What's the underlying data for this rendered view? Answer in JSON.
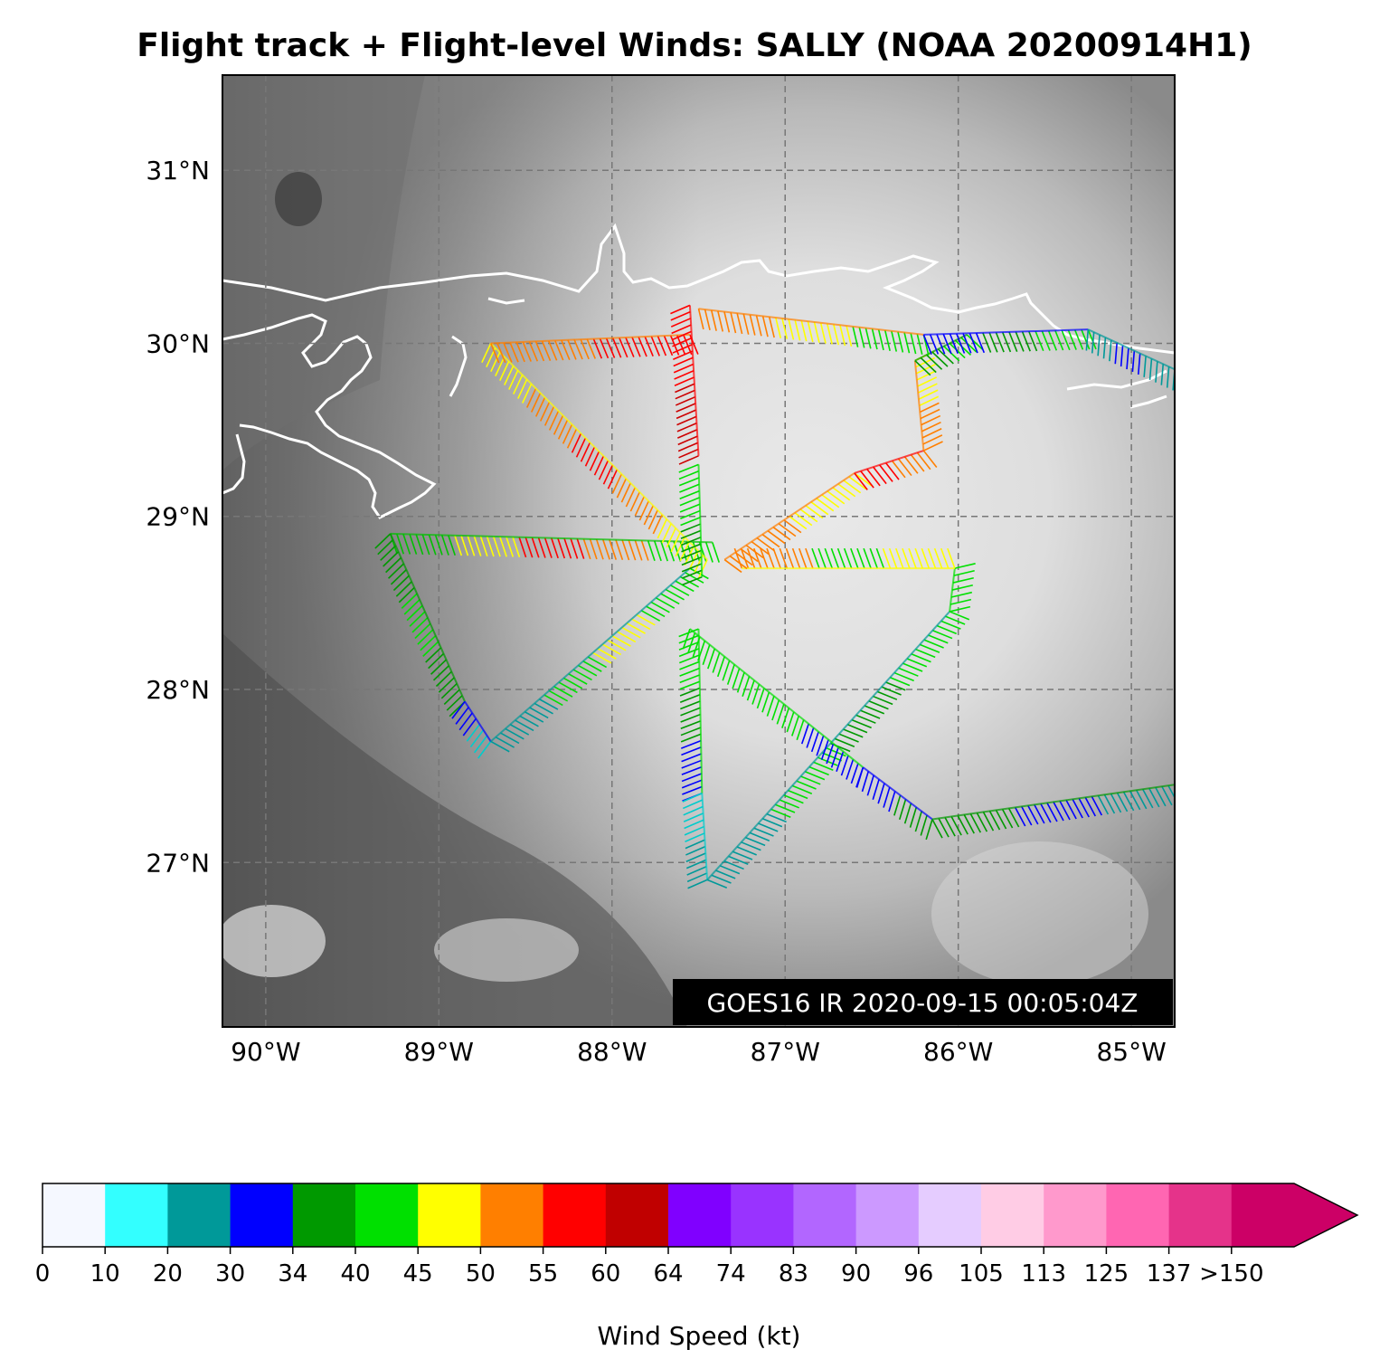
{
  "title": "Flight track + Flight-level Winds: SALLY (NOAA 20200914H1)",
  "stamp": "GOES16 IR 2020-09-15 00:05:04Z",
  "map": {
    "lon_range": [
      -90.25,
      -84.75
    ],
    "lat_range": [
      26.05,
      31.55
    ],
    "lat_ticks": [
      {
        "value": 31,
        "label": "31°N"
      },
      {
        "value": 30,
        "label": "30°N"
      },
      {
        "value": 29,
        "label": "29°N"
      },
      {
        "value": 28,
        "label": "28°N"
      },
      {
        "value": 27,
        "label": "27°N"
      }
    ],
    "lon_ticks": [
      {
        "value": -90,
        "label": "90°W"
      },
      {
        "value": -89,
        "label": "89°W"
      },
      {
        "value": -88,
        "label": "88°W"
      },
      {
        "value": -87,
        "label": "87°W"
      },
      {
        "value": -86,
        "label": "86°W"
      },
      {
        "value": -85,
        "label": "85°W"
      }
    ],
    "gridlines": true,
    "coastline_color": "#ffffff",
    "track_legs": [
      {
        "from": [
          -89.28,
          28.9
        ],
        "to": [
          -87.42,
          28.85
        ],
        "colors": [
          "#00c000",
          "#ffff00",
          "#ff0000",
          "#ff7f00",
          "#00e000"
        ]
      },
      {
        "from": [
          -89.28,
          28.9
        ],
        "to": [
          -88.85,
          27.93
        ],
        "colors": [
          "#009900",
          "#00e000",
          "#009900"
        ]
      },
      {
        "from": [
          -88.85,
          27.93
        ],
        "to": [
          -88.7,
          27.7
        ],
        "colors": [
          "#0000ff",
          "#00cccc"
        ]
      },
      {
        "from": [
          -88.7,
          27.7
        ],
        "to": [
          -87.55,
          28.7
        ],
        "colors": [
          "#009999",
          "#00e000",
          "#ffff00",
          "#00e000"
        ]
      },
      {
        "from": [
          -88.7,
          30.0
        ],
        "to": [
          -87.45,
          28.75
        ],
        "colors": [
          "#ffff00",
          "#ff7f00",
          "#ff0000",
          "#ff7f00",
          "#ffff00"
        ]
      },
      {
        "from": [
          -88.7,
          30.0
        ],
        "to": [
          -87.55,
          30.05
        ],
        "colors": [
          "#ff7f00",
          "#ff0000"
        ]
      },
      {
        "from": [
          -87.55,
          30.22
        ],
        "to": [
          -87.5,
          29.35
        ],
        "colors": [
          "#ff0000",
          "#cc0000"
        ]
      },
      {
        "from": [
          -87.5,
          29.3
        ],
        "to": [
          -87.48,
          28.65
        ],
        "colors": [
          "#00e000",
          "#009900"
        ]
      },
      {
        "from": [
          -87.5,
          28.35
        ],
        "to": [
          -87.48,
          27.4
        ],
        "colors": [
          "#00e000",
          "#009900",
          "#0000ff"
        ]
      },
      {
        "from": [
          -87.48,
          27.4
        ],
        "to": [
          -87.45,
          26.9
        ],
        "colors": [
          "#00cccc",
          "#009999"
        ]
      },
      {
        "from": [
          -87.45,
          26.9
        ],
        "to": [
          -86.05,
          28.45
        ],
        "colors": [
          "#009999",
          "#00e000",
          "#009900",
          "#00e000"
        ]
      },
      {
        "from": [
          -86.05,
          28.45
        ],
        "to": [
          -86.02,
          28.7
        ],
        "colors": [
          "#00e000"
        ]
      },
      {
        "from": [
          -86.02,
          28.7
        ],
        "to": [
          -87.25,
          28.7
        ],
        "colors": [
          "#ffff00",
          "#00e000",
          "#ff7f00"
        ]
      },
      {
        "from": [
          -87.55,
          28.35
        ],
        "to": [
          -86.55,
          27.55
        ],
        "colors": [
          "#00e000",
          "#00e000",
          "#0000ff"
        ]
      },
      {
        "from": [
          -86.55,
          27.55
        ],
        "to": [
          -86.15,
          27.25
        ],
        "colors": [
          "#0000ff",
          "#009900"
        ]
      },
      {
        "from": [
          -86.15,
          27.25
        ],
        "to": [
          -84.75,
          27.45
        ],
        "colors": [
          "#009900",
          "#0000ff",
          "#009999"
        ]
      },
      {
        "from": [
          -87.35,
          28.75
        ],
        "to": [
          -86.6,
          29.25
        ],
        "colors": [
          "#ff7f00",
          "#ffff00"
        ]
      },
      {
        "from": [
          -86.6,
          29.25
        ],
        "to": [
          -86.2,
          29.38
        ],
        "colors": [
          "#ff0000",
          "#ff7f00"
        ]
      },
      {
        "from": [
          -86.2,
          29.38
        ],
        "to": [
          -86.25,
          29.9
        ],
        "colors": [
          "#ff7f00",
          "#ffff00"
        ]
      },
      {
        "from": [
          -86.25,
          29.9
        ],
        "to": [
          -85.95,
          30.05
        ],
        "colors": [
          "#009900",
          "#00e000"
        ]
      },
      {
        "from": [
          -87.5,
          30.2
        ],
        "to": [
          -86.2,
          30.05
        ],
        "colors": [
          "#ff7f00",
          "#ffff00",
          "#00e000"
        ]
      },
      {
        "from": [
          -86.2,
          30.05
        ],
        "to": [
          -85.25,
          30.08
        ],
        "colors": [
          "#0000ff",
          "#009900",
          "#00e000"
        ]
      },
      {
        "from": [
          -85.25,
          30.08
        ],
        "to": [
          -84.75,
          29.85
        ],
        "colors": [
          "#009999",
          "#0000ff",
          "#009999"
        ]
      }
    ]
  },
  "colorbar": {
    "label": "Wind Speed (kt)",
    "tick_labels": [
      "0",
      "10",
      "20",
      "30",
      "34",
      "40",
      "45",
      "50",
      "55",
      "60",
      "64",
      "74",
      "83",
      "90",
      "96",
      "105",
      "113",
      "125",
      "137",
      ">150"
    ],
    "colors": [
      "#f5f8ff",
      "#33ffff",
      "#009999",
      "#0000ff",
      "#009900",
      "#00e000",
      "#ffff00",
      "#ff7f00",
      "#ff0000",
      "#c00000",
      "#8000ff",
      "#9933ff",
      "#b266ff",
      "#cc99ff",
      "#e5ccff",
      "#ffcce5",
      "#ff99cc",
      "#ff66b2",
      "#e5338a",
      "#cc0066"
    ],
    "extend_color": "#cc0066"
  }
}
